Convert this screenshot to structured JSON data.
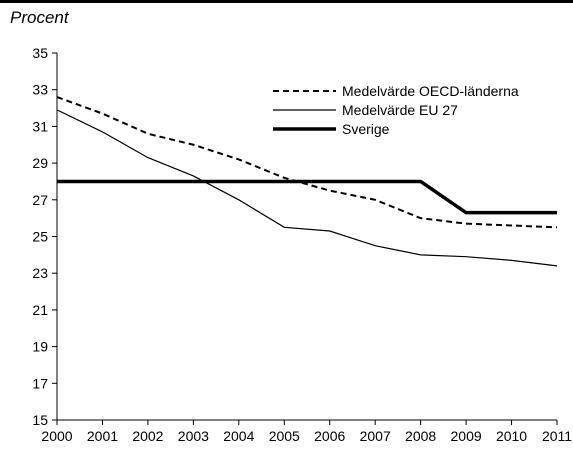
{
  "chart_data": {
    "type": "line",
    "title": "",
    "unit_label": "Procent",
    "xlabel": "",
    "ylabel": "",
    "x": [
      "2000",
      "2001",
      "2002",
      "2003",
      "2004",
      "2005",
      "2006",
      "2007",
      "2008",
      "2009",
      "2010",
      "2011"
    ],
    "ylim": [
      15,
      35
    ],
    "yticks": [
      15,
      17,
      19,
      21,
      23,
      25,
      27,
      29,
      31,
      33,
      35
    ],
    "grid": false,
    "legend_position": "top-right",
    "series": [
      {
        "name": "Medelvärde OECD-länderna",
        "style": "dashed",
        "color": "#000000",
        "values": [
          32.6,
          31.7,
          30.6,
          30.0,
          29.2,
          28.2,
          27.5,
          27.0,
          26.0,
          25.7,
          25.6,
          25.5
        ]
      },
      {
        "name": "Medelvärde EU 27",
        "style": "thin",
        "color": "#000000",
        "values": [
          31.9,
          30.7,
          29.3,
          28.3,
          27.0,
          25.5,
          25.3,
          24.5,
          24.0,
          23.9,
          23.7,
          23.4
        ]
      },
      {
        "name": "Sverige",
        "style": "thick",
        "color": "#000000",
        "values": [
          28.0,
          28.0,
          28.0,
          28.0,
          28.0,
          28.0,
          28.0,
          28.0,
          28.0,
          26.3,
          26.3,
          26.3
        ]
      }
    ]
  }
}
